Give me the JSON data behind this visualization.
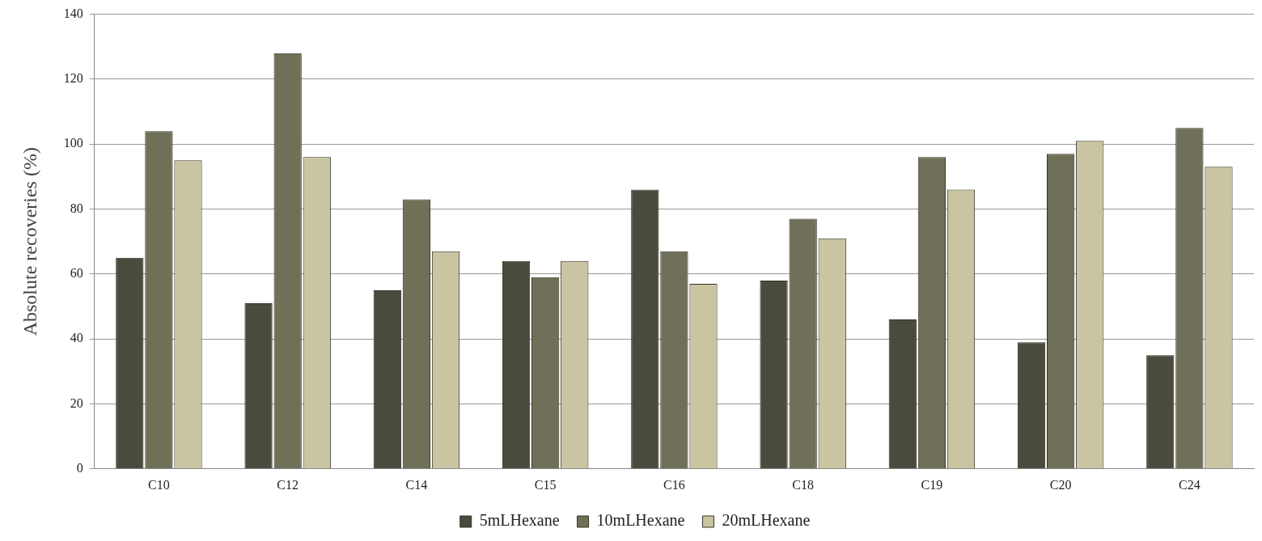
{
  "chart_data": {
    "type": "bar",
    "ylabel": "Absolute recoveries (%)",
    "categories": [
      "C10",
      "C12",
      "C14",
      "C15",
      "C16",
      "C18",
      "C19",
      "C20",
      "C24"
    ],
    "series": [
      {
        "name": "5mLHexane",
        "color": "#4a4a3e",
        "values": [
          65,
          51,
          55,
          64,
          86,
          58,
          46,
          39,
          35
        ]
      },
      {
        "name": "10mLHexane",
        "color": "#707058",
        "values": [
          104,
          128,
          83,
          59,
          67,
          77,
          96,
          97,
          105
        ]
      },
      {
        "name": "20mLHexane",
        "color": "#c9c5a2",
        "values": [
          95,
          96,
          67,
          64,
          57,
          71,
          86,
          101,
          93
        ]
      }
    ],
    "ylim": [
      0,
      140
    ],
    "yticks": [
      0,
      20,
      40,
      60,
      80,
      100,
      120,
      140
    ],
    "grid": "y",
    "legend": "bottom"
  }
}
